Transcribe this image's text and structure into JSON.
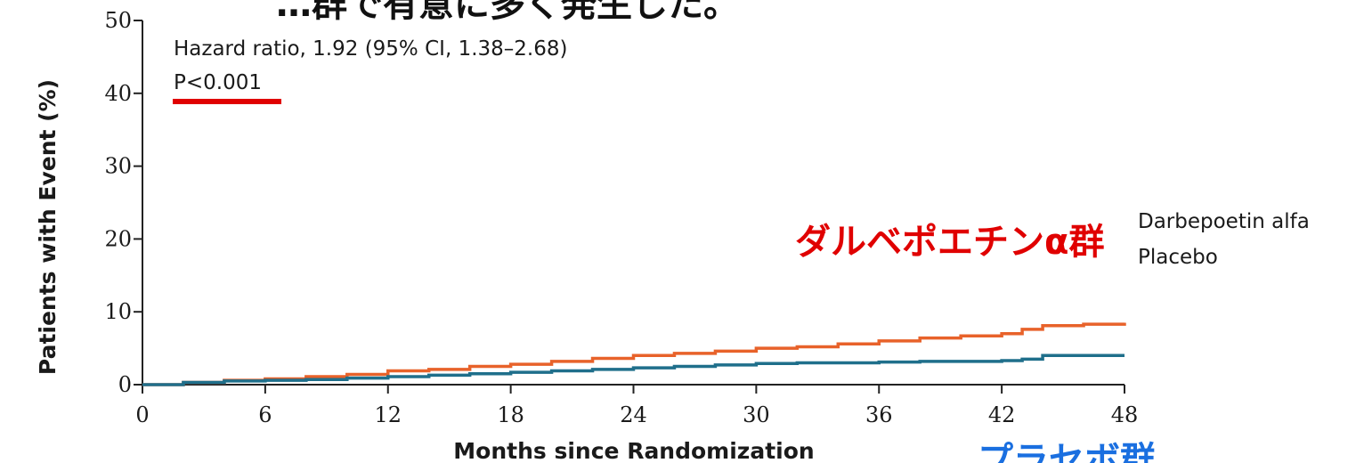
{
  "banner_text": "…群で有意に多く発生した。",
  "colors": {
    "darbepoetin": "#e8622a",
    "placebo": "#1f6f8b",
    "highlight_red": "#e00000",
    "highlight_blue": "#1a6fe0",
    "axis": "#222222"
  },
  "annotations": {
    "hazard_ratio": "Hazard ratio, 1.92 (95% CI, 1.38–2.68)",
    "p_value": "P<0.001",
    "jp_darbepoetin_group": "ダルベポエチンα群",
    "jp_placebo_group": "プラセボ群"
  },
  "chart_data": {
    "type": "line",
    "xlabel": "Months since Randomization",
    "ylabel": "Patients with Event (%)",
    "xlim": [
      0,
      48
    ],
    "ylim": [
      0,
      50
    ],
    "x_ticks": [
      0,
      6,
      12,
      18,
      24,
      30,
      36,
      42,
      48
    ],
    "y_ticks": [
      0,
      10,
      20,
      30,
      40,
      50
    ],
    "grid": false,
    "step": true,
    "series": [
      {
        "name": "Darbepoetin alfa",
        "color_key": "darbepoetin",
        "x": [
          0,
          2,
          4,
          6,
          8,
          10,
          12,
          14,
          16,
          18,
          20,
          22,
          24,
          26,
          28,
          30,
          32,
          34,
          36,
          38,
          40,
          42,
          43,
          44,
          46,
          48
        ],
        "y": [
          0,
          0.3,
          0.6,
          0.8,
          1.1,
          1.4,
          1.9,
          2.1,
          2.5,
          2.8,
          3.2,
          3.6,
          4.0,
          4.3,
          4.6,
          5.0,
          5.2,
          5.6,
          6.0,
          6.4,
          6.7,
          7.0,
          7.6,
          8.1,
          8.3,
          8.5
        ]
      },
      {
        "name": "Placebo",
        "color_key": "placebo",
        "x": [
          0,
          2,
          4,
          6,
          8,
          10,
          12,
          14,
          16,
          18,
          20,
          22,
          24,
          26,
          28,
          30,
          32,
          34,
          36,
          38,
          40,
          42,
          43,
          44,
          46,
          48
        ],
        "y": [
          0,
          0.3,
          0.5,
          0.6,
          0.7,
          0.9,
          1.1,
          1.3,
          1.5,
          1.7,
          1.9,
          2.1,
          2.3,
          2.5,
          2.7,
          2.9,
          3.0,
          3.0,
          3.1,
          3.2,
          3.2,
          3.3,
          3.5,
          4.0,
          4.0,
          4.0
        ]
      }
    ]
  }
}
